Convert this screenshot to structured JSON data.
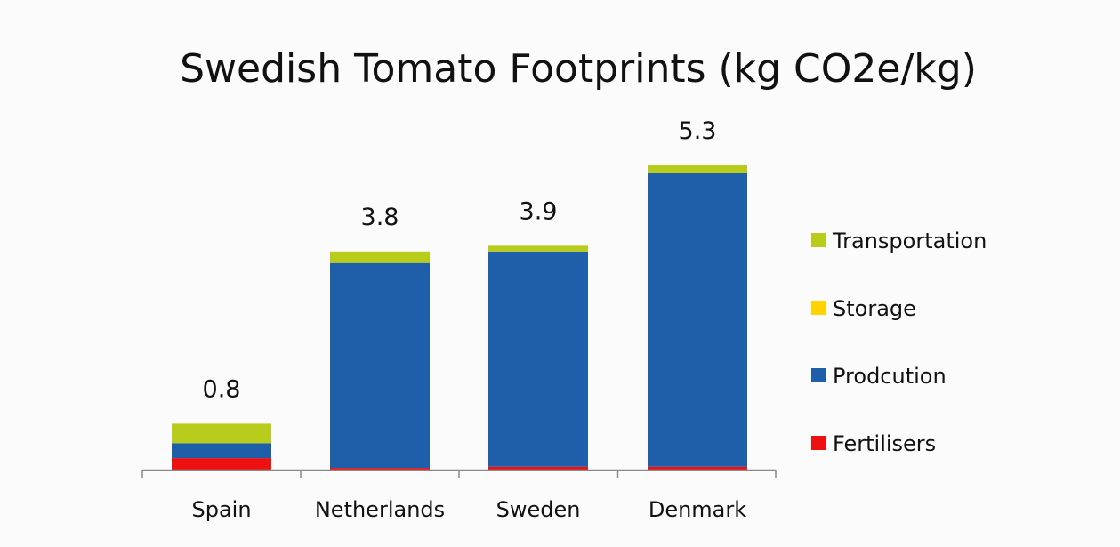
{
  "chart_data": {
    "type": "bar",
    "stacked": true,
    "title": "Swedish Tomato Footprints (kg CO2e/kg)",
    "xlabel": "",
    "ylabel": "",
    "categories": [
      "Spain",
      "Netherlands",
      "Sweden",
      "Denmark"
    ],
    "totals": [
      "0.8",
      "3.8",
      "3.9",
      "5.3"
    ],
    "series": [
      {
        "name": "Fertilisers",
        "color": "#ee1111",
        "values": [
          0.2,
          0.03,
          0.05,
          0.05
        ]
      },
      {
        "name": "Prodcution",
        "color": "#1f5ea8",
        "values": [
          0.26,
          3.57,
          3.75,
          5.12
        ]
      },
      {
        "name": "Storage",
        "color": "#ffd200",
        "values": [
          0.0,
          0.0,
          0.0,
          0.0
        ]
      },
      {
        "name": "Transportation",
        "color": "#b8cc1c",
        "values": [
          0.34,
          0.2,
          0.1,
          0.13
        ]
      }
    ],
    "legend_order": [
      "Transportation",
      "Storage",
      "Prodcution",
      "Fertilisers"
    ],
    "legend_position": "right",
    "ylim": [
      0,
      5.3
    ],
    "grid": false
  }
}
